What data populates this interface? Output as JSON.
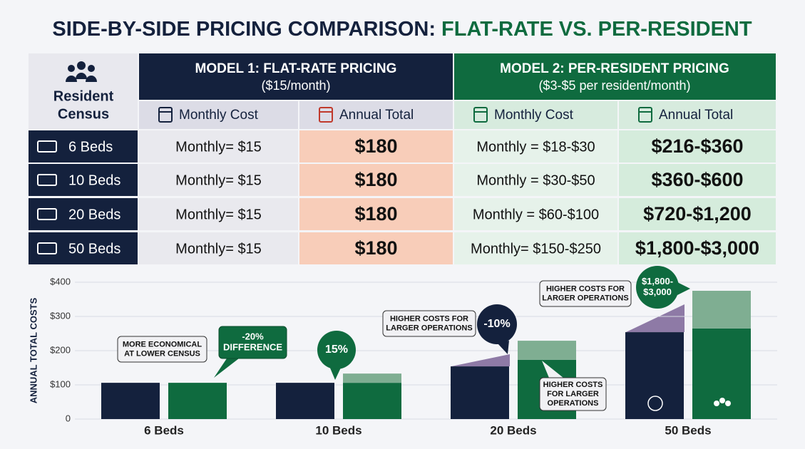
{
  "title_part1": "SIDE-BY-SIDE PRICING COMPARISON:",
  "title_part2": "FLAT-RATE VS. PER-RESIDENT",
  "table": {
    "census_header": [
      "Resident",
      "Census"
    ],
    "model1": {
      "title": "MODEL 1: FLAT-RATE PRICING",
      "subtitle": "($15/month)"
    },
    "model2": {
      "title": "MODEL 2: PER-RESIDENT PRICING",
      "subtitle": "($3-$5 per resident/month)"
    },
    "columns": [
      "Monthly Cost",
      "Annual Total",
      "Monthly Cost",
      "Annual Total"
    ],
    "rows": [
      [
        "6 Beds",
        "Monthly= $15",
        "$180",
        "Monthly = $18-$30",
        "$216-$360"
      ],
      [
        "10 Beds",
        "Monthly= $15",
        "$180",
        "Monthly = $30-$50",
        "$360-$600"
      ],
      [
        "20 Beds",
        "Monthly= $15",
        "$180",
        "Monthly = $60-$100",
        "$720-$1,200"
      ],
      [
        "50 Beds",
        "Monthly= $15",
        "$180",
        "Monthly= $150-$250",
        "$1,800-$3,000"
      ]
    ]
  },
  "chart_data": {
    "type": "bar",
    "y_label": "ANNUAL TOTAL COSTS",
    "categories": [
      "6 Beds",
      "10 Beds",
      "20 Beds",
      "50 Beds"
    ],
    "series": [
      {
        "color": "#14213d",
        "values": [
          106,
          106,
          154,
          254
        ]
      },
      {
        "color": "#0f6b3f",
        "values": [
          106,
          106,
          173,
          265
        ]
      },
      {
        "color": "#7fae92",
        "values": [
          0,
          27,
          56,
          110
        ],
        "stack": true
      }
    ],
    "ylim": [
      0,
      400
    ],
    "yticks": [
      0,
      {
        "value": 100,
        "label": "$100"
      },
      {
        "value": 200,
        "label": "$200"
      },
      {
        "value": 300,
        "label": "$300"
      },
      {
        "value": 400,
        "label": "$400"
      }
    ],
    "annotations": [
      {
        "lines": [
          "MORE ECONOMICAL",
          "AT LOWER CENSUS"
        ]
      },
      {
        "lines": [
          "-20%",
          "DIFFERENCE"
        ]
      },
      {
        "lines": [
          "15%"
        ]
      },
      {
        "lines": [
          "HIGHER COSTS FOR",
          "LARGER OPERATIONS"
        ]
      },
      {
        "lines": [
          "-10%"
        ]
      },
      {
        "lines": [
          "HIGHER COSTS",
          "FOR LARGER",
          "OPERATIONS"
        ]
      },
      {
        "lines": [
          "HIGHER COSTS FOR",
          "LARGER OPERATIONS"
        ]
      },
      {
        "lines": [
          "$1,800-",
          "$3,000"
        ]
      }
    ]
  }
}
